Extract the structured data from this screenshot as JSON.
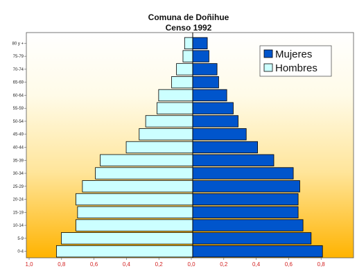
{
  "chart_data": {
    "type": "bar",
    "orientation": "horizontal",
    "layout": "population-pyramid",
    "title": "Comuna de Doñihue",
    "subtitle": "Censo 1992",
    "categories": [
      "0-4",
      "5-9",
      "10-14",
      "15-19",
      "20-24",
      "25-29",
      "30-34",
      "35-39",
      "40-44",
      "45-49",
      "50-54",
      "55-59",
      "60-64",
      "65-69",
      "70-74",
      "75-79",
      "80 y +"
    ],
    "series": [
      {
        "name": "Mujeres",
        "color": "#0055cc",
        "values": [
          0.8,
          0.73,
          0.68,
          0.65,
          0.65,
          0.66,
          0.62,
          0.5,
          0.4,
          0.33,
          0.28,
          0.25,
          0.21,
          0.16,
          0.15,
          0.1,
          0.09
        ]
      },
      {
        "name": "Hombres",
        "color": "#ccffff",
        "values": [
          0.84,
          0.81,
          0.72,
          0.71,
          0.72,
          0.68,
          0.6,
          0.57,
          0.41,
          0.33,
          0.29,
          0.22,
          0.21,
          0.13,
          0.1,
          0.06,
          0.05
        ]
      }
    ],
    "xticks": [
      "1,0",
      "0,8",
      "0,6",
      "0,4",
      "0,2",
      "0,0",
      "0,2",
      "0,4",
      "0,6",
      "0,8"
    ],
    "xlim": [
      -1.0,
      0.8
    ],
    "legend_position": "top-right",
    "background": "vertical gradient white to orange"
  }
}
